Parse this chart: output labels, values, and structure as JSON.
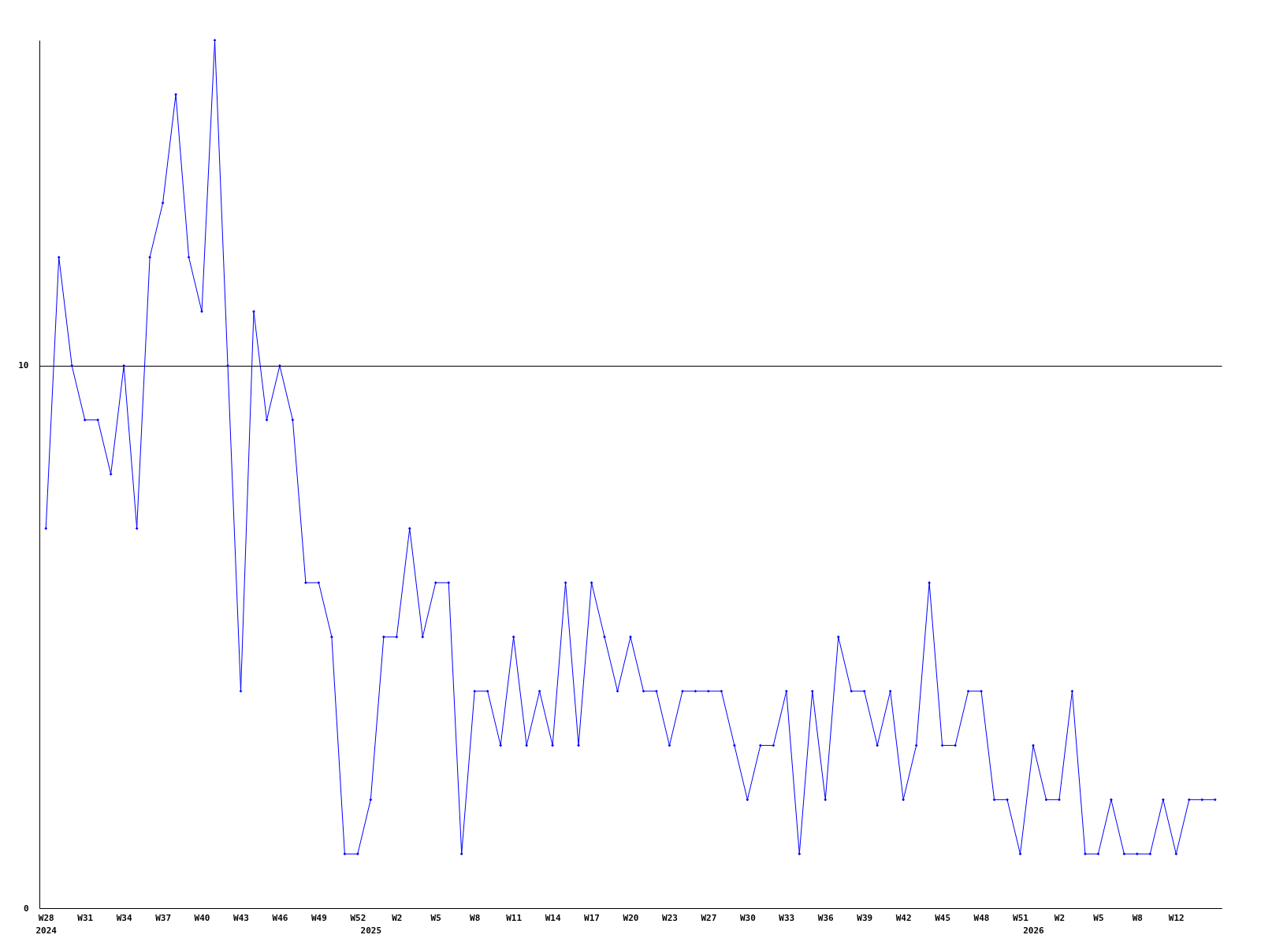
{
  "chart_data": {
    "type": "line",
    "categories": [
      "W28\n2024",
      null,
      null,
      "W31",
      null,
      null,
      "W34",
      null,
      null,
      "W37",
      null,
      null,
      "W40",
      null,
      null,
      "W43",
      null,
      null,
      "W46",
      null,
      null,
      "W49",
      null,
      null,
      "W52",
      "\n2025",
      null,
      "W2",
      null,
      null,
      "W5",
      null,
      null,
      "W8",
      null,
      null,
      "W11",
      null,
      null,
      "W14",
      null,
      null,
      "W17",
      null,
      null,
      "W20",
      null,
      null,
      "W23",
      null,
      null,
      "W27",
      null,
      null,
      "W30",
      null,
      null,
      "W33",
      null,
      null,
      "W36",
      null,
      null,
      "W39",
      null,
      null,
      "W42",
      null,
      null,
      "W45",
      null,
      null,
      "W48",
      null,
      null,
      "W51",
      "\n2026",
      null,
      "W2",
      null,
      null,
      "W5",
      null,
      null,
      "W8",
      null,
      null,
      "W12",
      null,
      null,
      null
    ],
    "series": [
      {
        "color": "#0000ff",
        "values": [
          7,
          12,
          10,
          9,
          9,
          8,
          10,
          7,
          12,
          13,
          15,
          12,
          11,
          16,
          10,
          4,
          11,
          9,
          10,
          9,
          6,
          6,
          5,
          1,
          1,
          2,
          5,
          5,
          7,
          5,
          6,
          6,
          1,
          4,
          4,
          3,
          5,
          3,
          4,
          3,
          6,
          3,
          6,
          5,
          4,
          5,
          4,
          4,
          3,
          4,
          4,
          4,
          4,
          3,
          2,
          3,
          3,
          4,
          1,
          4,
          2,
          5,
          4,
          4,
          3,
          4,
          2,
          3,
          6,
          3,
          3,
          4,
          4,
          2,
          2,
          1,
          3,
          2,
          2,
          4,
          1,
          1,
          2,
          1,
          1,
          1,
          2,
          1,
          2,
          2,
          2
        ]
      }
    ],
    "ylim": [
      0,
      16
    ],
    "yticks": [
      0,
      10
    ],
    "grid": "y",
    "marker": "diamond",
    "line_style": "solid"
  }
}
